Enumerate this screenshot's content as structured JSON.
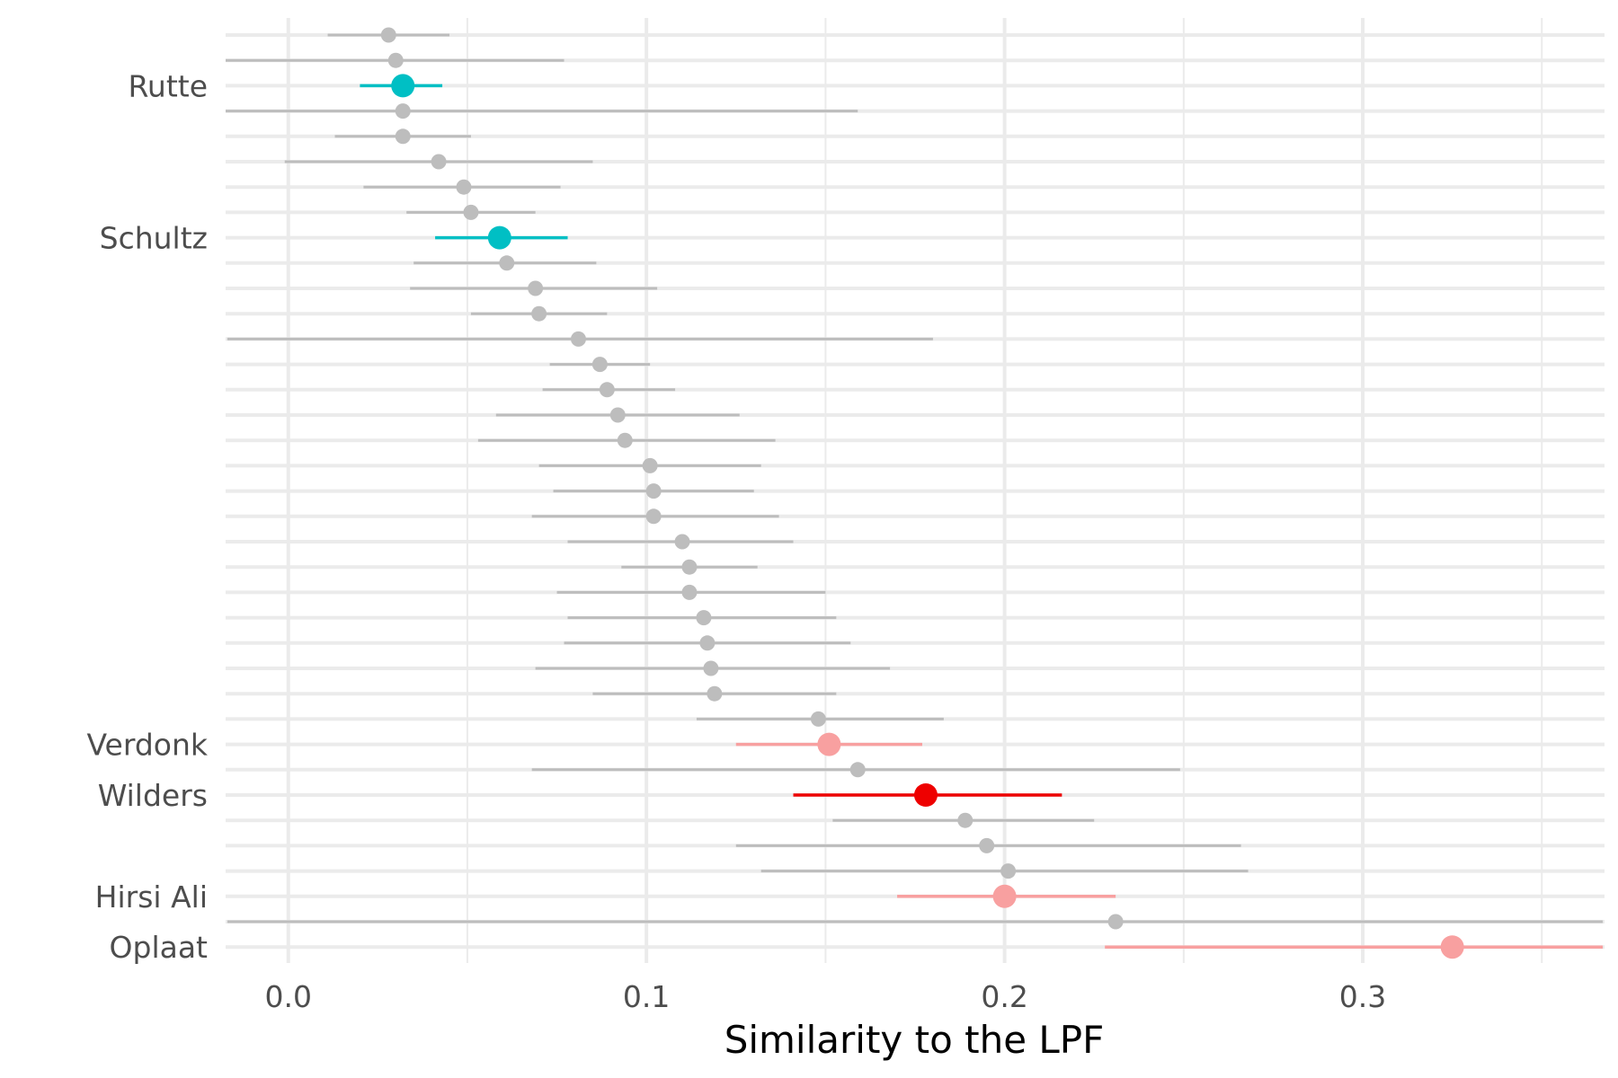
{
  "chart_data": {
    "type": "scatter",
    "title": "",
    "xlabel": "Similarity to the LPF",
    "ylabel": "",
    "xlim": [
      -0.0175,
      0.3675
    ],
    "x_ticks": [
      0.0,
      0.1,
      0.2,
      0.3
    ],
    "x_tick_labels": [
      "0.0",
      "0.1",
      "0.2",
      "0.3"
    ],
    "grid": true,
    "legend": "none",
    "colors": {
      "other": "#bdbdbd",
      "highlight_teal": "#00bfc4",
      "highlight_pink": "#f8a0a0",
      "highlight_red": "#ee0000",
      "grid": "#ebebeb"
    },
    "points": [
      {
        "label": "",
        "estimate": 0.028,
        "low": 0.011,
        "high": 0.045,
        "color": "other"
      },
      {
        "label": "",
        "estimate": 0.03,
        "low": -0.02,
        "high": 0.077,
        "color": "other"
      },
      {
        "label": "Rutte",
        "estimate": 0.032,
        "low": 0.02,
        "high": 0.043,
        "color": "highlight_teal"
      },
      {
        "label": "",
        "estimate": 0.032,
        "low": -0.02,
        "high": 0.159,
        "color": "other"
      },
      {
        "label": "",
        "estimate": 0.032,
        "low": 0.013,
        "high": 0.051,
        "color": "other"
      },
      {
        "label": "",
        "estimate": 0.042,
        "low": -0.001,
        "high": 0.085,
        "color": "other"
      },
      {
        "label": "",
        "estimate": 0.049,
        "low": 0.021,
        "high": 0.076,
        "color": "other"
      },
      {
        "label": "",
        "estimate": 0.051,
        "low": 0.033,
        "high": 0.069,
        "color": "other"
      },
      {
        "label": "Schultz",
        "estimate": 0.059,
        "low": 0.041,
        "high": 0.078,
        "color": "highlight_teal"
      },
      {
        "label": "",
        "estimate": 0.061,
        "low": 0.035,
        "high": 0.086,
        "color": "other"
      },
      {
        "label": "",
        "estimate": 0.069,
        "low": 0.034,
        "high": 0.103,
        "color": "other"
      },
      {
        "label": "",
        "estimate": 0.07,
        "low": 0.051,
        "high": 0.089,
        "color": "other"
      },
      {
        "label": "",
        "estimate": 0.081,
        "low": -0.017,
        "high": 0.18,
        "color": "other"
      },
      {
        "label": "",
        "estimate": 0.087,
        "low": 0.073,
        "high": 0.101,
        "color": "other"
      },
      {
        "label": "",
        "estimate": 0.089,
        "low": 0.071,
        "high": 0.108,
        "color": "other"
      },
      {
        "label": "",
        "estimate": 0.092,
        "low": 0.058,
        "high": 0.126,
        "color": "other"
      },
      {
        "label": "",
        "estimate": 0.094,
        "low": 0.053,
        "high": 0.136,
        "color": "other"
      },
      {
        "label": "",
        "estimate": 0.101,
        "low": 0.07,
        "high": 0.132,
        "color": "other"
      },
      {
        "label": "",
        "estimate": 0.102,
        "low": 0.074,
        "high": 0.13,
        "color": "other"
      },
      {
        "label": "",
        "estimate": 0.102,
        "low": 0.068,
        "high": 0.137,
        "color": "other"
      },
      {
        "label": "",
        "estimate": 0.11,
        "low": 0.078,
        "high": 0.141,
        "color": "other"
      },
      {
        "label": "",
        "estimate": 0.112,
        "low": 0.093,
        "high": 0.131,
        "color": "other"
      },
      {
        "label": "",
        "estimate": 0.112,
        "low": 0.075,
        "high": 0.15,
        "color": "other"
      },
      {
        "label": "",
        "estimate": 0.116,
        "low": 0.078,
        "high": 0.153,
        "color": "other"
      },
      {
        "label": "",
        "estimate": 0.117,
        "low": 0.077,
        "high": 0.157,
        "color": "other"
      },
      {
        "label": "",
        "estimate": 0.118,
        "low": 0.069,
        "high": 0.168,
        "color": "other"
      },
      {
        "label": "",
        "estimate": 0.119,
        "low": 0.085,
        "high": 0.153,
        "color": "other"
      },
      {
        "label": "",
        "estimate": 0.148,
        "low": 0.114,
        "high": 0.183,
        "color": "other"
      },
      {
        "label": "Verdonk",
        "estimate": 0.151,
        "low": 0.125,
        "high": 0.177,
        "color": "highlight_pink"
      },
      {
        "label": "",
        "estimate": 0.159,
        "low": 0.068,
        "high": 0.249,
        "color": "other"
      },
      {
        "label": "Wilders",
        "estimate": 0.178,
        "low": 0.141,
        "high": 0.216,
        "color": "highlight_red"
      },
      {
        "label": "",
        "estimate": 0.189,
        "low": 0.152,
        "high": 0.225,
        "color": "other"
      },
      {
        "label": "",
        "estimate": 0.195,
        "low": 0.125,
        "high": 0.266,
        "color": "other"
      },
      {
        "label": "",
        "estimate": 0.201,
        "low": 0.132,
        "high": 0.268,
        "color": "other"
      },
      {
        "label": "Hirsi Ali",
        "estimate": 0.2,
        "low": 0.17,
        "high": 0.231,
        "color": "highlight_pink"
      },
      {
        "label": "",
        "estimate": 0.231,
        "low": -0.017,
        "high": 0.367,
        "color": "other"
      },
      {
        "label": "Oplaat",
        "estimate": 0.325,
        "low": 0.228,
        "high": 0.367,
        "color": "highlight_pink"
      }
    ]
  }
}
